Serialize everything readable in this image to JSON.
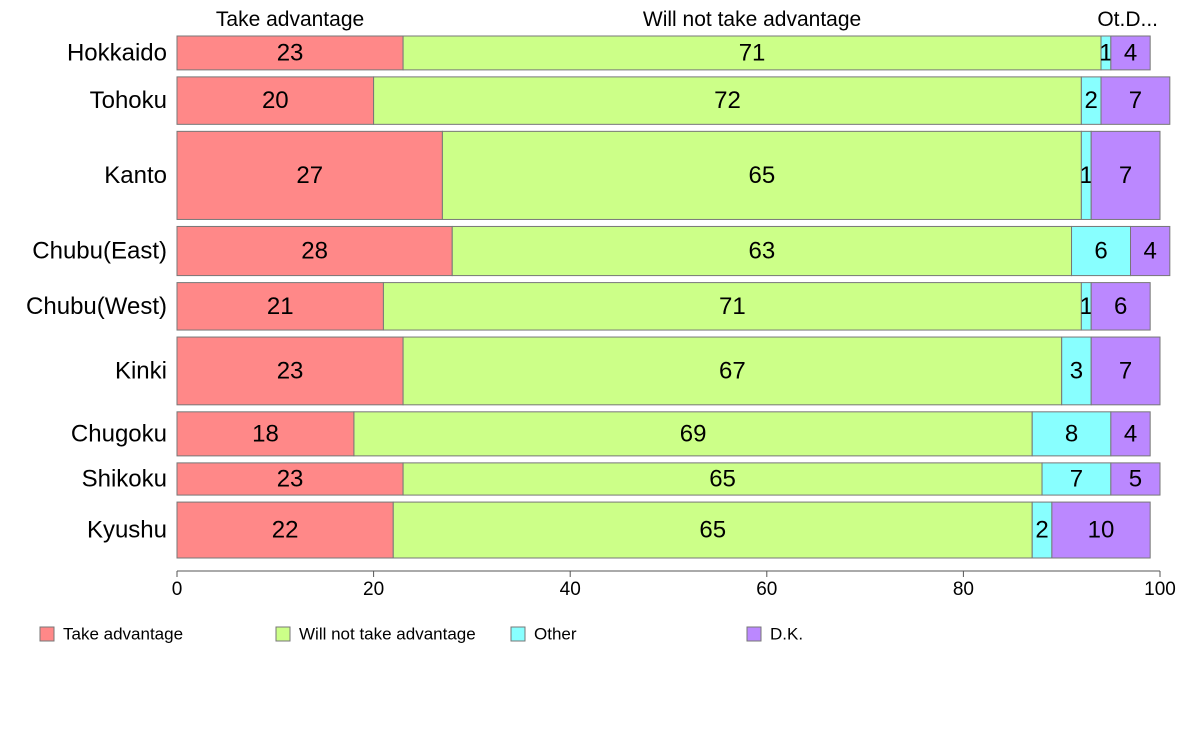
{
  "chart_data": {
    "type": "bar",
    "orientation": "horizontal",
    "stacked": true,
    "xlim": [
      0,
      100
    ],
    "x_ticks": [
      0,
      20,
      40,
      60,
      80,
      100
    ],
    "grid": false,
    "legend_position": "bottom-left",
    "column_headers": [
      "Take advantage",
      "Will not take advantage",
      "Ot.D..."
    ],
    "categories": [
      "Hokkaido",
      "Tohoku",
      "Kanto",
      "Chubu(East)",
      "Chubu(West)",
      "Kinki",
      "Chugoku",
      "Shikoku",
      "Kyushu"
    ],
    "category_weights": [
      1.0,
      1.4,
      2.6,
      1.45,
      1.4,
      2.0,
      1.3,
      0.95,
      1.65
    ],
    "series": [
      {
        "name": "Take advantage",
        "color": "#ff8888",
        "values": [
          23,
          20,
          27,
          28,
          21,
          23,
          18,
          23,
          22
        ]
      },
      {
        "name": "Will not take advantage",
        "color": "#ccff88",
        "values": [
          71,
          72,
          65,
          63,
          71,
          67,
          69,
          65,
          65
        ]
      },
      {
        "name": "Other",
        "color": "#88ffff",
        "values": [
          1,
          2,
          1,
          6,
          1,
          3,
          8,
          7,
          2
        ]
      },
      {
        "name": "D.K.",
        "color": "#bb88ff",
        "values": [
          4,
          7,
          7,
          4,
          6,
          7,
          4,
          5,
          10
        ]
      }
    ]
  }
}
